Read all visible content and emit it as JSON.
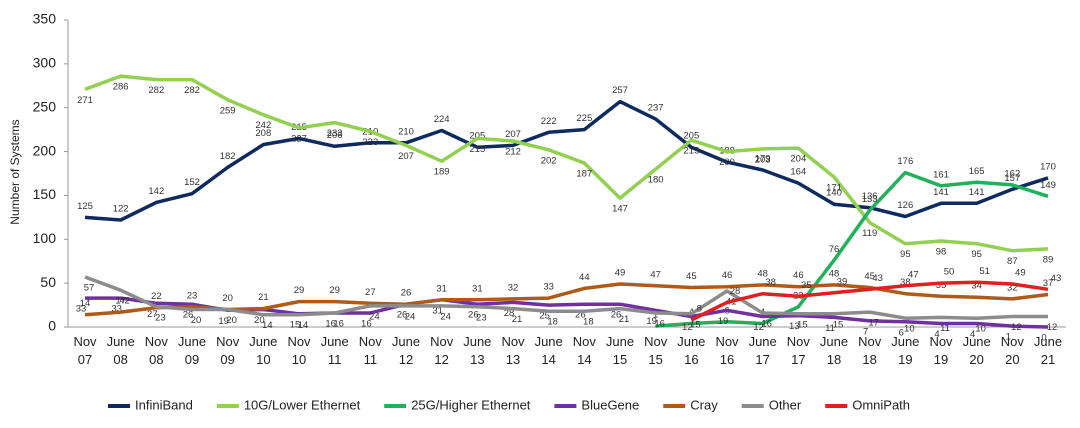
{
  "chart_data": {
    "type": "line",
    "y_label": "Number of Systems",
    "categories": [
      "Nov 07",
      "June 08",
      "Nov 08",
      "June 09",
      "Nov 09",
      "June 10",
      "Nov 10",
      "June 11",
      "Nov 11",
      "June 12",
      "Nov 12",
      "June 13",
      "Nov 13",
      "June 14",
      "Nov 14",
      "June 15",
      "Nov 15",
      "June 16",
      "Nov 16",
      "June 17",
      "Nov 17",
      "June 18",
      "Nov 18",
      "June 19",
      "Nov 19",
      "June 20",
      "Nov 20",
      "June 21"
    ],
    "ylim": [
      0,
      350
    ],
    "yticks": [
      0,
      50,
      100,
      150,
      200,
      250,
      300,
      350
    ],
    "grid": false,
    "legend": "bottom",
    "series": [
      {
        "name": "InfiniBand",
        "color": "#0e2a5e",
        "values": [
          125,
          122,
          142,
          152,
          182,
          208,
          215,
          206,
          210,
          210,
          224,
          205,
          207,
          222,
          225,
          257,
          237,
          205,
          188,
          179,
          164,
          140,
          136,
          126,
          141,
          141,
          157,
          170
        ]
      },
      {
        "name": "10G/Lower Ethernet",
        "color": "#92d050",
        "values": [
          271,
          286,
          282,
          282,
          259,
          242,
          227,
          233,
          223,
          207,
          189,
          215,
          212,
          202,
          187,
          147,
          180,
          213,
          200,
          203,
          204,
          171,
          119,
          95,
          98,
          95,
          87,
          89
        ]
      },
      {
        "name": "25G/Higher Ethernet",
        "color": "#1fb25a",
        "values": [
          null,
          null,
          null,
          null,
          null,
          null,
          null,
          null,
          null,
          null,
          null,
          null,
          null,
          null,
          null,
          null,
          1,
          4,
          6,
          4,
          23,
          76,
          133,
          176,
          161,
          165,
          162,
          149
        ]
      },
      {
        "name": "BlueGene",
        "color": "#7030a0",
        "values": [
          33,
          33,
          27,
          26,
          19,
          20,
          15,
          16,
          16,
          26,
          31,
          26,
          28,
          25,
          26,
          26,
          19,
          12,
          19,
          12,
          13,
          11,
          7,
          6,
          4,
          4,
          1,
          0
        ]
      },
      {
        "name": "Cray",
        "color": "#b05a1a",
        "values": [
          14,
          17,
          22,
          23,
          20,
          21,
          29,
          29,
          27,
          26,
          31,
          31,
          32,
          33,
          44,
          49,
          47,
          45,
          46,
          48,
          46,
          48,
          45,
          38,
          35,
          34,
          32,
          37
        ]
      },
      {
        "name": "Other",
        "color": "#8c8c8c",
        "values": [
          57,
          42,
          23,
          20,
          20,
          14,
          14,
          16,
          24,
          24,
          24,
          23,
          21,
          18,
          18,
          21,
          16,
          15,
          41,
          16,
          15,
          15,
          17,
          10,
          11,
          10,
          12,
          12
        ]
      },
      {
        "name": "OmniPath",
        "color": "#e02020",
        "values": [
          null,
          null,
          null,
          null,
          null,
          null,
          null,
          null,
          null,
          null,
          null,
          null,
          null,
          null,
          null,
          null,
          null,
          8,
          28,
          38,
          35,
          39,
          43,
          47,
          50,
          51,
          49,
          43
        ]
      }
    ]
  }
}
